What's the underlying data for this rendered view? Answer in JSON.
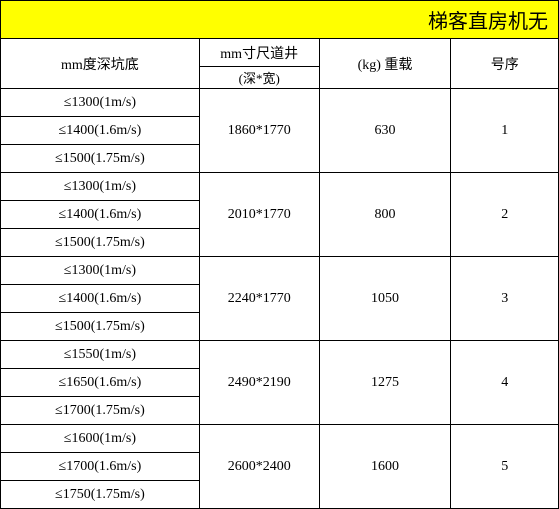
{
  "title": "梯客直房机无",
  "headers": {
    "depth": "mm度深坑底",
    "size_top": "mm寸尺道井",
    "size_sub": "(深*宽)",
    "weight": "(kg) 重载",
    "num": "号序"
  },
  "rows": [
    {
      "num": "1",
      "weight": "630",
      "size": "1860*1770",
      "depths": [
        "≤1300(1m/s)",
        "≤1400(1.6m/s)",
        "≤1500(1.75m/s)"
      ]
    },
    {
      "num": "2",
      "weight": "800",
      "size": "2010*1770",
      "depths": [
        "≤1300(1m/s)",
        "≤1400(1.6m/s)",
        "≤1500(1.75m/s)"
      ]
    },
    {
      "num": "3",
      "weight": "1050",
      "size": "2240*1770",
      "depths": [
        "≤1300(1m/s)",
        "≤1400(1.6m/s)",
        "≤1500(1.75m/s)"
      ]
    },
    {
      "num": "4",
      "weight": "1275",
      "size": "2490*2190",
      "depths": [
        "≤1550(1m/s)",
        "≤1650(1.6m/s)",
        "≤1700(1.75m/s)"
      ]
    },
    {
      "num": "5",
      "weight": "1600",
      "size": "2600*2400",
      "depths": [
        "≤1600(1m/s)",
        "≤1700(1.6m/s)",
        "≤1750(1.75m/s)"
      ]
    }
  ],
  "colors": {
    "title_bg": "#ffff00",
    "border": "#000000",
    "text": "#000000",
    "bg": "#ffffff"
  }
}
